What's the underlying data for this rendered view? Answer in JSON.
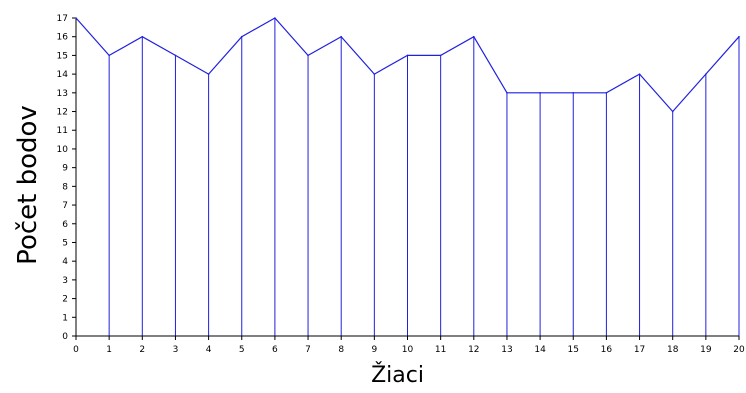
{
  "chart_data": {
    "type": "line",
    "title": "",
    "xlabel": "Žiaci",
    "ylabel": "Počet bodov",
    "x": [
      0,
      1,
      2,
      3,
      4,
      5,
      6,
      7,
      8,
      9,
      10,
      11,
      12,
      13,
      14,
      15,
      16,
      17,
      18,
      19,
      20
    ],
    "values": [
      17,
      15,
      16,
      15,
      14,
      16,
      17,
      15,
      16,
      14,
      15,
      15,
      16,
      13,
      13,
      13,
      13,
      14,
      12,
      14,
      16
    ],
    "xlim": [
      0,
      20
    ],
    "ylim": [
      0,
      17
    ],
    "x_ticks": [
      0,
      1,
      2,
      3,
      4,
      5,
      6,
      7,
      8,
      9,
      10,
      11,
      12,
      13,
      14,
      15,
      16,
      17,
      18,
      19,
      20
    ],
    "y_ticks": [
      0,
      1,
      2,
      3,
      4,
      5,
      6,
      7,
      8,
      9,
      10,
      11,
      12,
      13,
      14,
      15,
      16,
      17
    ],
    "drop_lines": true,
    "grid": false,
    "legend": "none",
    "colors": {
      "series": "#2020e0",
      "axis": "#000000"
    }
  }
}
